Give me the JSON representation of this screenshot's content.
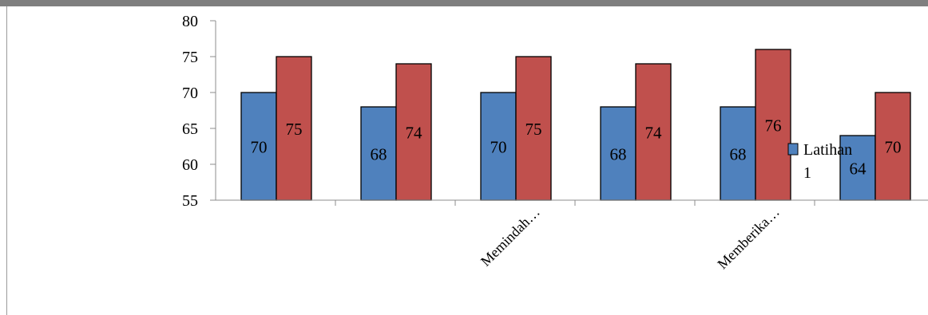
{
  "chart_data": {
    "type": "bar",
    "title": "",
    "xlabel": "",
    "ylabel": "",
    "ylim": [
      55,
      80
    ],
    "yticks": [
      55,
      60,
      65,
      70,
      75,
      80
    ],
    "grid": false,
    "categories": [
      "",
      "",
      "Memindah…",
      "",
      "Memberika…",
      ""
    ],
    "series": [
      {
        "name": "Latihan 1",
        "color": "#4f81bd",
        "values": [
          70,
          68,
          70,
          68,
          68,
          64
        ]
      },
      {
        "color": "#c0504d",
        "values": [
          75,
          74,
          75,
          74,
          76,
          70
        ]
      }
    ],
    "data_labels": true,
    "legend": {
      "position": "right",
      "entries": [
        "Latihan 1"
      ]
    }
  }
}
